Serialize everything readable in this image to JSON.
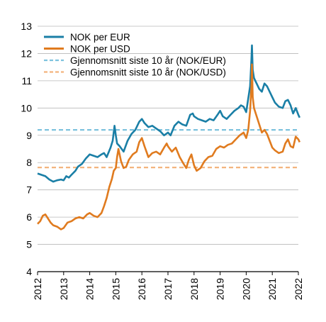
{
  "chart_data": {
    "type": "line",
    "title": "",
    "xlabel": "",
    "ylabel": "",
    "xlim": [
      2012,
      2022
    ],
    "ylim": [
      4,
      13
    ],
    "x_ticks": [
      "2012",
      "2013",
      "2014",
      "2015",
      "2016",
      "2017",
      "2018",
      "2019",
      "2020",
      "2021",
      "2022"
    ],
    "y_ticks": [
      "4",
      "5",
      "6",
      "7",
      "8",
      "9",
      "10",
      "11",
      "12",
      "13"
    ],
    "grid": "horizontal",
    "legend_position": "top-left",
    "series": [
      {
        "name": "NOK per EUR",
        "color": "#1a7fa6",
        "style": "solid",
        "points": [
          [
            2012.0,
            7.6
          ],
          [
            2012.15,
            7.55
          ],
          [
            2012.3,
            7.5
          ],
          [
            2012.45,
            7.38
          ],
          [
            2012.6,
            7.3
          ],
          [
            2012.75,
            7.35
          ],
          [
            2012.9,
            7.38
          ],
          [
            2013.0,
            7.35
          ],
          [
            2013.1,
            7.5
          ],
          [
            2013.2,
            7.45
          ],
          [
            2013.3,
            7.55
          ],
          [
            2013.45,
            7.7
          ],
          [
            2013.55,
            7.85
          ],
          [
            2013.7,
            7.95
          ],
          [
            2013.85,
            8.15
          ],
          [
            2014.0,
            8.3
          ],
          [
            2014.15,
            8.25
          ],
          [
            2014.3,
            8.2
          ],
          [
            2014.45,
            8.3
          ],
          [
            2014.55,
            8.35
          ],
          [
            2014.65,
            8.2
          ],
          [
            2014.8,
            8.55
          ],
          [
            2014.88,
            8.8
          ],
          [
            2014.95,
            9.35
          ],
          [
            2015.0,
            9.0
          ],
          [
            2015.05,
            8.7
          ],
          [
            2015.15,
            8.6
          ],
          [
            2015.3,
            8.4
          ],
          [
            2015.45,
            8.8
          ],
          [
            2015.6,
            9.05
          ],
          [
            2015.75,
            9.2
          ],
          [
            2015.9,
            9.5
          ],
          [
            2016.0,
            9.6
          ],
          [
            2016.1,
            9.45
          ],
          [
            2016.25,
            9.3
          ],
          [
            2016.4,
            9.35
          ],
          [
            2016.55,
            9.25
          ],
          [
            2016.7,
            9.15
          ],
          [
            2016.85,
            9.0
          ],
          [
            2017.0,
            9.1
          ],
          [
            2017.1,
            9.0
          ],
          [
            2017.25,
            9.35
          ],
          [
            2017.4,
            9.5
          ],
          [
            2017.55,
            9.4
          ],
          [
            2017.7,
            9.35
          ],
          [
            2017.85,
            9.75
          ],
          [
            2017.95,
            9.8
          ],
          [
            2018.0,
            9.7
          ],
          [
            2018.15,
            9.6
          ],
          [
            2018.3,
            9.55
          ],
          [
            2018.45,
            9.5
          ],
          [
            2018.6,
            9.6
          ],
          [
            2018.75,
            9.55
          ],
          [
            2018.9,
            9.75
          ],
          [
            2019.0,
            9.9
          ],
          [
            2019.1,
            9.7
          ],
          [
            2019.25,
            9.6
          ],
          [
            2019.4,
            9.75
          ],
          [
            2019.55,
            9.9
          ],
          [
            2019.7,
            10.0
          ],
          [
            2019.8,
            10.1
          ],
          [
            2019.9,
            10.05
          ],
          [
            2020.0,
            9.85
          ],
          [
            2020.07,
            10.3
          ],
          [
            2020.15,
            10.8
          ],
          [
            2020.2,
            11.8
          ],
          [
            2020.22,
            12.3
          ],
          [
            2020.25,
            11.4
          ],
          [
            2020.3,
            11.1
          ],
          [
            2020.4,
            10.9
          ],
          [
            2020.5,
            10.7
          ],
          [
            2020.6,
            10.6
          ],
          [
            2020.7,
            10.9
          ],
          [
            2020.8,
            10.8
          ],
          [
            2020.9,
            10.6
          ],
          [
            2021.0,
            10.4
          ],
          [
            2021.1,
            10.2
          ],
          [
            2021.25,
            10.05
          ],
          [
            2021.4,
            10.0
          ],
          [
            2021.5,
            10.25
          ],
          [
            2021.6,
            10.3
          ],
          [
            2021.7,
            10.1
          ],
          [
            2021.8,
            9.8
          ],
          [
            2021.9,
            10.0
          ],
          [
            2022.0,
            9.75
          ],
          [
            2022.05,
            9.65
          ]
        ]
      },
      {
        "name": "NOK per USD",
        "color": "#e07b1f",
        "style": "solid",
        "points": [
          [
            2012.0,
            5.75
          ],
          [
            2012.1,
            5.85
          ],
          [
            2012.2,
            6.05
          ],
          [
            2012.3,
            6.1
          ],
          [
            2012.4,
            5.95
          ],
          [
            2012.5,
            5.8
          ],
          [
            2012.6,
            5.7
          ],
          [
            2012.75,
            5.65
          ],
          [
            2012.9,
            5.55
          ],
          [
            2013.0,
            5.6
          ],
          [
            2013.15,
            5.8
          ],
          [
            2013.3,
            5.85
          ],
          [
            2013.45,
            5.95
          ],
          [
            2013.6,
            6.0
          ],
          [
            2013.75,
            5.95
          ],
          [
            2013.9,
            6.1
          ],
          [
            2014.0,
            6.15
          ],
          [
            2014.15,
            6.05
          ],
          [
            2014.3,
            6.0
          ],
          [
            2014.45,
            6.15
          ],
          [
            2014.55,
            6.4
          ],
          [
            2014.65,
            6.7
          ],
          [
            2014.75,
            7.1
          ],
          [
            2014.85,
            7.4
          ],
          [
            2014.92,
            7.7
          ],
          [
            2015.0,
            7.8
          ],
          [
            2015.05,
            8.2
          ],
          [
            2015.1,
            8.5
          ],
          [
            2015.2,
            8.05
          ],
          [
            2015.3,
            7.8
          ],
          [
            2015.4,
            7.85
          ],
          [
            2015.5,
            8.1
          ],
          [
            2015.65,
            8.3
          ],
          [
            2015.8,
            8.4
          ],
          [
            2015.9,
            8.75
          ],
          [
            2016.0,
            8.9
          ],
          [
            2016.1,
            8.6
          ],
          [
            2016.25,
            8.2
          ],
          [
            2016.4,
            8.35
          ],
          [
            2016.55,
            8.4
          ],
          [
            2016.7,
            8.3
          ],
          [
            2016.85,
            8.55
          ],
          [
            2016.95,
            8.7
          ],
          [
            2017.0,
            8.6
          ],
          [
            2017.15,
            8.4
          ],
          [
            2017.3,
            8.55
          ],
          [
            2017.45,
            8.2
          ],
          [
            2017.6,
            7.95
          ],
          [
            2017.7,
            7.8
          ],
          [
            2017.8,
            8.1
          ],
          [
            2017.9,
            8.3
          ],
          [
            2018.0,
            7.9
          ],
          [
            2018.1,
            7.7
          ],
          [
            2018.25,
            7.8
          ],
          [
            2018.4,
            8.05
          ],
          [
            2018.55,
            8.2
          ],
          [
            2018.7,
            8.25
          ],
          [
            2018.85,
            8.5
          ],
          [
            2019.0,
            8.6
          ],
          [
            2019.15,
            8.55
          ],
          [
            2019.3,
            8.65
          ],
          [
            2019.45,
            8.7
          ],
          [
            2019.6,
            8.85
          ],
          [
            2019.75,
            9.0
          ],
          [
            2019.9,
            9.1
          ],
          [
            2020.0,
            8.9
          ],
          [
            2020.08,
            9.2
          ],
          [
            2020.15,
            9.9
          ],
          [
            2020.2,
            10.8
          ],
          [
            2020.22,
            11.6
          ],
          [
            2020.25,
            10.4
          ],
          [
            2020.3,
            10.0
          ],
          [
            2020.4,
            9.7
          ],
          [
            2020.5,
            9.4
          ],
          [
            2020.6,
            9.1
          ],
          [
            2020.7,
            9.2
          ],
          [
            2020.8,
            9.05
          ],
          [
            2020.9,
            8.8
          ],
          [
            2021.0,
            8.55
          ],
          [
            2021.1,
            8.45
          ],
          [
            2021.25,
            8.35
          ],
          [
            2021.4,
            8.4
          ],
          [
            2021.5,
            8.7
          ],
          [
            2021.6,
            8.85
          ],
          [
            2021.7,
            8.6
          ],
          [
            2021.8,
            8.55
          ],
          [
            2021.9,
            8.95
          ],
          [
            2022.0,
            8.85
          ],
          [
            2022.05,
            8.75
          ]
        ]
      },
      {
        "name": "Gjennomsnitt siste 10 år (NOK/EUR)",
        "color": "#7ec3de",
        "style": "dashed",
        "points": [
          [
            2012.0,
            9.2
          ],
          [
            2022.05,
            9.2
          ]
        ]
      },
      {
        "name": "Gjennomsnitt siste 10 år (NOK/USD)",
        "color": "#f3b47e",
        "style": "dashed",
        "points": [
          [
            2012.0,
            7.82
          ],
          [
            2022.05,
            7.82
          ]
        ]
      }
    ]
  }
}
